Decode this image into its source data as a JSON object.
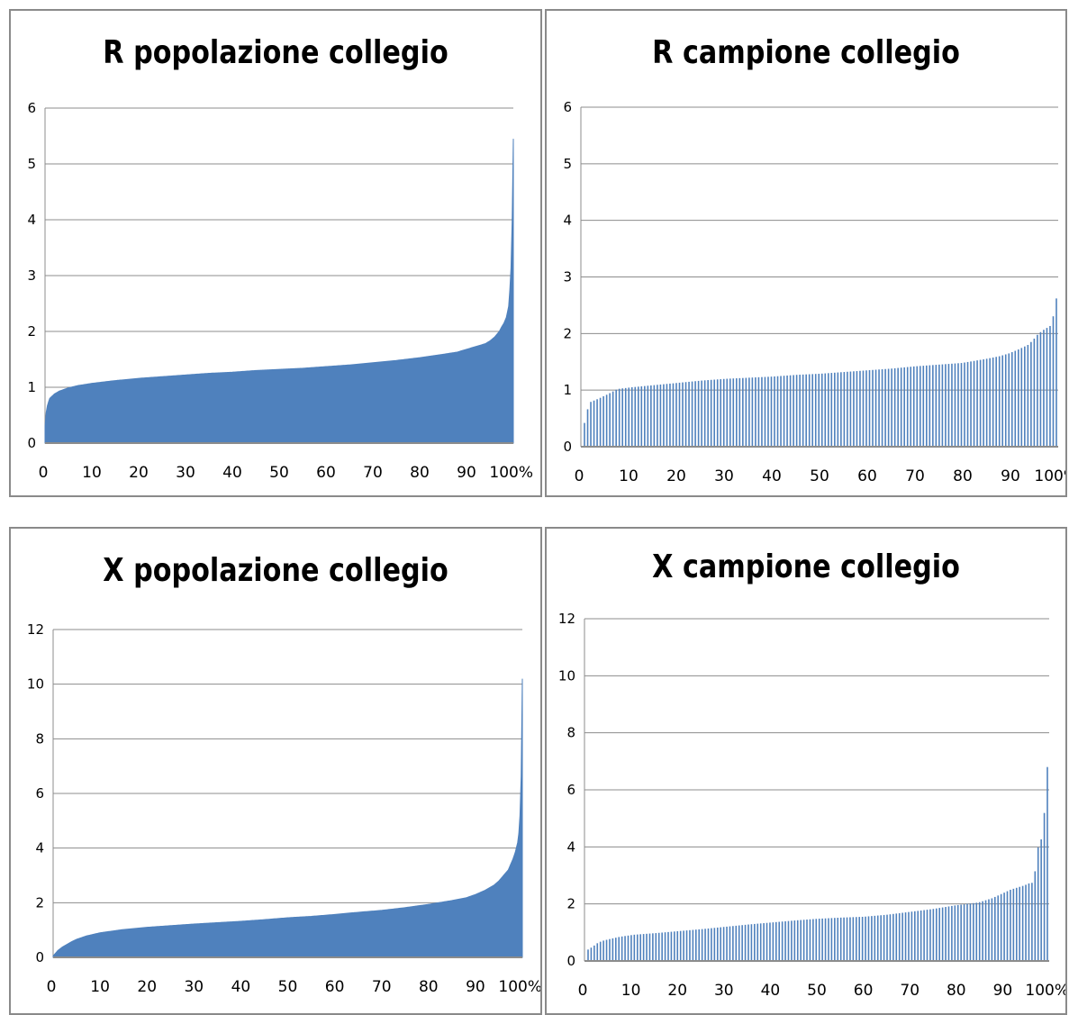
{
  "chart_data": [
    {
      "type": "area",
      "title": "R popolazione collegio",
      "color": "#4f81bd",
      "ylim": [
        0,
        6
      ],
      "yticks": [
        "0",
        "1",
        "2",
        "3",
        "4",
        "5",
        "6"
      ],
      "xlim": [
        0,
        100
      ],
      "xticks": [
        "0",
        "10",
        "20",
        "30",
        "40",
        "50",
        "60",
        "70",
        "80",
        "90",
        "100%"
      ],
      "grid": true,
      "x": [
        0,
        0.3,
        0.6,
        1,
        2,
        3,
        5,
        7,
        10,
        15,
        20,
        25,
        30,
        35,
        40,
        45,
        50,
        55,
        60,
        65,
        70,
        75,
        80,
        85,
        88,
        90,
        92,
        94,
        95,
        96,
        97,
        97.5,
        98,
        98.5,
        99,
        99.3,
        99.6,
        99.8,
        100
      ],
      "values": [
        0.3,
        0.6,
        0.7,
        0.8,
        0.88,
        0.93,
        0.99,
        1.03,
        1.07,
        1.12,
        1.16,
        1.19,
        1.22,
        1.25,
        1.27,
        1.3,
        1.32,
        1.34,
        1.37,
        1.4,
        1.44,
        1.48,
        1.53,
        1.59,
        1.63,
        1.68,
        1.73,
        1.78,
        1.83,
        1.9,
        2.0,
        2.08,
        2.15,
        2.25,
        2.45,
        2.8,
        3.3,
        4.2,
        5.45
      ]
    },
    {
      "type": "bar",
      "title": "R campione collegio",
      "color": "#4f81bd",
      "ylim": [
        0,
        6
      ],
      "yticks": [
        "0",
        "1",
        "2",
        "3",
        "4",
        "5",
        "6"
      ],
      "xlim": [
        0,
        100
      ],
      "xticks": [
        "0",
        "10",
        "20",
        "30",
        "40",
        "50",
        "60",
        "70",
        "80",
        "90",
        "100%"
      ],
      "grid": true,
      "x": [
        0,
        1,
        3,
        5,
        7,
        10,
        15,
        20,
        25,
        30,
        35,
        40,
        45,
        50,
        55,
        60,
        65,
        70,
        75,
        80,
        85,
        88,
        90,
        92,
        94,
        95,
        96,
        97,
        98,
        99,
        100
      ],
      "values": [
        0.42,
        0.78,
        0.85,
        0.93,
        1.02,
        1.05,
        1.09,
        1.13,
        1.17,
        1.2,
        1.22,
        1.24,
        1.27,
        1.29,
        1.32,
        1.35,
        1.38,
        1.42,
        1.45,
        1.48,
        1.55,
        1.6,
        1.65,
        1.72,
        1.8,
        1.88,
        1.98,
        2.05,
        2.1,
        2.15,
        2.62
      ]
    },
    {
      "type": "area",
      "title": "X popolazione collegio",
      "color": "#4f81bd",
      "ylim": [
        0,
        12
      ],
      "yticks": [
        "0",
        "2",
        "4",
        "6",
        "8",
        "10",
        "12"
      ],
      "xlim": [
        0,
        100
      ],
      "xticks": [
        "0",
        "10",
        "20",
        "30",
        "40",
        "50",
        "60",
        "70",
        "80",
        "90",
        "100%"
      ],
      "grid": true,
      "x": [
        0,
        0.5,
        1,
        2,
        3,
        4,
        5,
        7,
        10,
        15,
        20,
        25,
        30,
        35,
        40,
        45,
        50,
        55,
        60,
        65,
        70,
        75,
        80,
        85,
        88,
        90,
        92,
        94,
        95,
        96,
        97,
        98,
        98.5,
        99,
        99.3,
        99.6,
        99.8,
        100
      ],
      "values": [
        0.05,
        0.15,
        0.25,
        0.38,
        0.48,
        0.58,
        0.66,
        0.78,
        0.9,
        1.02,
        1.1,
        1.16,
        1.22,
        1.27,
        1.32,
        1.38,
        1.45,
        1.5,
        1.57,
        1.65,
        1.72,
        1.82,
        1.94,
        2.08,
        2.18,
        2.3,
        2.45,
        2.65,
        2.8,
        3.0,
        3.2,
        3.6,
        3.85,
        4.2,
        4.6,
        5.5,
        7.0,
        10.2
      ]
    },
    {
      "type": "bar",
      "title": "X campione collegio",
      "color": "#4f81bd",
      "ylim": [
        0,
        12
      ],
      "yticks": [
        "0",
        "2",
        "4",
        "6",
        "8",
        "10",
        "12"
      ],
      "xlim": [
        0,
        100
      ],
      "xticks": [
        "0",
        "10",
        "20",
        "30",
        "40",
        "50",
        "60",
        "70",
        "80",
        "90",
        "100%"
      ],
      "grid": true,
      "x": [
        0,
        1,
        2,
        3,
        5,
        7,
        10,
        15,
        20,
        25,
        30,
        35,
        40,
        45,
        50,
        55,
        60,
        65,
        70,
        75,
        80,
        85,
        88,
        90,
        92,
        94,
        95,
        96,
        97,
        98,
        99,
        100
      ],
      "values": [
        0.4,
        0.5,
        0.62,
        0.7,
        0.78,
        0.85,
        0.92,
        0.98,
        1.05,
        1.12,
        1.2,
        1.28,
        1.35,
        1.42,
        1.48,
        1.52,
        1.55,
        1.62,
        1.72,
        1.82,
        1.95,
        2.05,
        2.2,
        2.35,
        2.5,
        2.6,
        2.65,
        2.72,
        2.75,
        4.0,
        4.4,
        6.8
      ]
    }
  ]
}
